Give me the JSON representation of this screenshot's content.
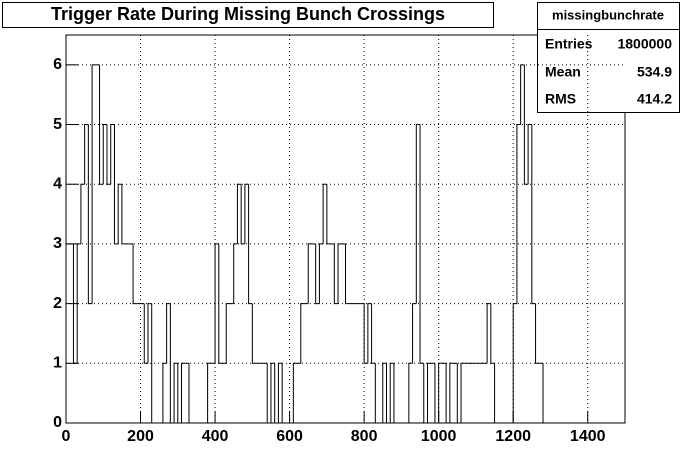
{
  "chart_data": {
    "type": "histogram",
    "title": "Trigger Rate During Missing Bunch Crossings",
    "bins": [
      0,
      10,
      20,
      30,
      40,
      50,
      60,
      70,
      80,
      90,
      100,
      110,
      120,
      130,
      140,
      150,
      160,
      170,
      180,
      190,
      200,
      210,
      220,
      230,
      240,
      250,
      260,
      270,
      280,
      290,
      300,
      310,
      320,
      330,
      340,
      350,
      360,
      370,
      380,
      390,
      400,
      410,
      420,
      430,
      440,
      450,
      460,
      470,
      480,
      490,
      500,
      510,
      520,
      530,
      540,
      550,
      560,
      570,
      580,
      590,
      600,
      610,
      620,
      630,
      640,
      650,
      660,
      670,
      680,
      690,
      700,
      710,
      720,
      730,
      740,
      750,
      760,
      770,
      780,
      790,
      800,
      810,
      820,
      830,
      840,
      850,
      860,
      870,
      880,
      890,
      900,
      910,
      920,
      930,
      940,
      950,
      960,
      970,
      980,
      990,
      1000,
      1010,
      1020,
      1030,
      1040,
      1050,
      1060,
      1070,
      1080,
      1090,
      1100,
      1110,
      1120,
      1130,
      1140,
      1150,
      1160,
      1170,
      1180,
      1190,
      1200,
      1210,
      1220,
      1230,
      1240,
      1250,
      1260,
      1270,
      1280,
      1290,
      1300,
      1310,
      1320,
      1330,
      1340,
      1350,
      1360,
      1370,
      1380,
      1390,
      1400,
      1410,
      1420,
      1430,
      1440,
      1450,
      1460,
      1470,
      1480,
      1490,
      1500
    ],
    "values": [
      3,
      3,
      1,
      3,
      4,
      5,
      2,
      6,
      6,
      4,
      5,
      4,
      5,
      3,
      4,
      3,
      3,
      3,
      2,
      2,
      2,
      1,
      2,
      0,
      0,
      0,
      1,
      2,
      0,
      1,
      0,
      1,
      1,
      0,
      0,
      0,
      0,
      0,
      1,
      1,
      3,
      1,
      1,
      2,
      2,
      3,
      4,
      3,
      4,
      2,
      1,
      1,
      1,
      1,
      0,
      1,
      0,
      1,
      0,
      0,
      0,
      1,
      1,
      2,
      2,
      3,
      3,
      2,
      3,
      4,
      3,
      3,
      2,
      3,
      3,
      2,
      2,
      2,
      2,
      2,
      1,
      2,
      1,
      0,
      0,
      1,
      0,
      1,
      0,
      0,
      0,
      0,
      1,
      2,
      5,
      1,
      0,
      1,
      1,
      0,
      1,
      1,
      0,
      1,
      1,
      0,
      1,
      1,
      1,
      1,
      1,
      1,
      1,
      2,
      1,
      0,
      0,
      0,
      0,
      0,
      2,
      5,
      6,
      4,
      5,
      2,
      1,
      1,
      0,
      0,
      0,
      0,
      0,
      0,
      0,
      0,
      0,
      0,
      0,
      0,
      0,
      0,
      0,
      0,
      0,
      0,
      0,
      0,
      0,
      0
    ],
    "color": "#000000",
    "xlim": [
      0,
      1500
    ],
    "xticks": [
      0,
      200,
      400,
      600,
      800,
      1000,
      1200,
      1400
    ],
    "ylim": [
      0,
      6.5
    ],
    "yticks": [
      0,
      1,
      2,
      3,
      4,
      5,
      6
    ],
    "grid": true,
    "stats": {
      "name": "missingbunchrate",
      "rows": [
        [
          "Entries",
          1800000
        ],
        [
          "Mean",
          534.9
        ],
        [
          "RMS",
          414.2
        ]
      ]
    }
  }
}
